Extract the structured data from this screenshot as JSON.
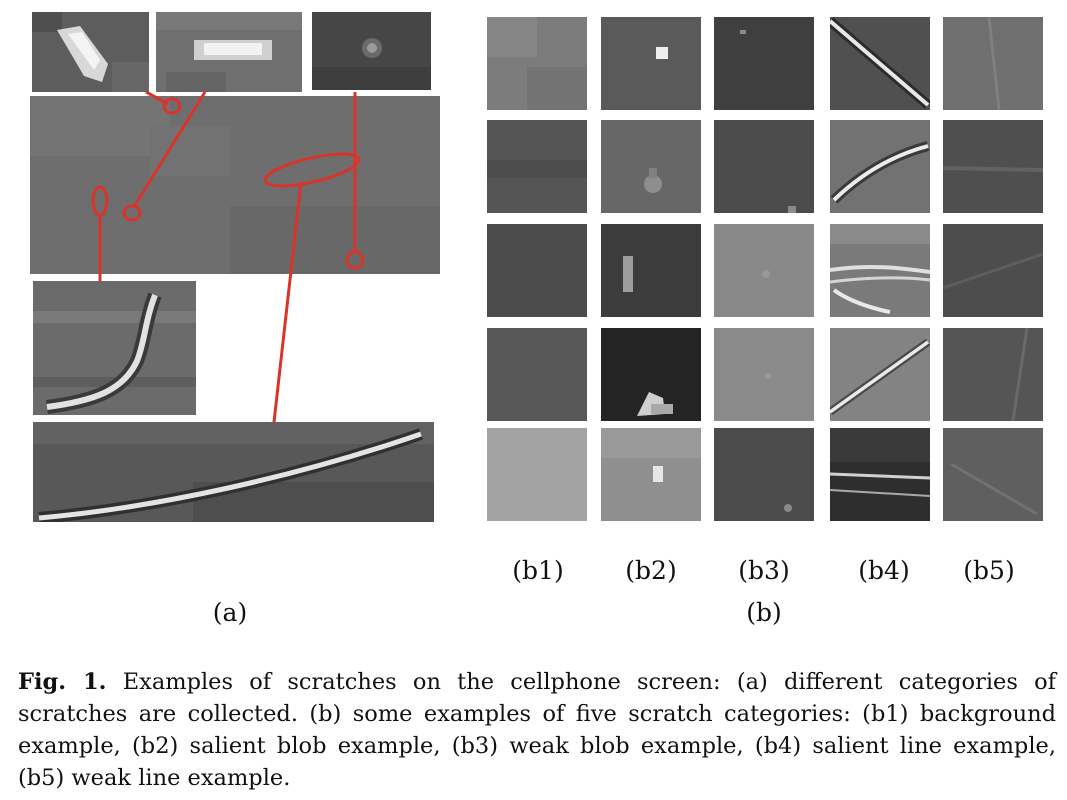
{
  "figure": {
    "panel_a_label": "(a)",
    "panel_b_label": "(b)",
    "column_labels": [
      "(b1)",
      "(b2)",
      "(b3)",
      "(b4)",
      "(b5)"
    ],
    "caption_prefix": "Fig. 1.",
    "caption_text": "Examples of scratches on the cellphone screen: (a) different categories of scratches are collected. (b) some examples of five scratch categories: (b1) background example, (b2) salient blob example, (b3) weak blob example, (b4) salient line example, (b5) weak line example."
  },
  "colors": {
    "annotation_red": "#d9342b"
  }
}
